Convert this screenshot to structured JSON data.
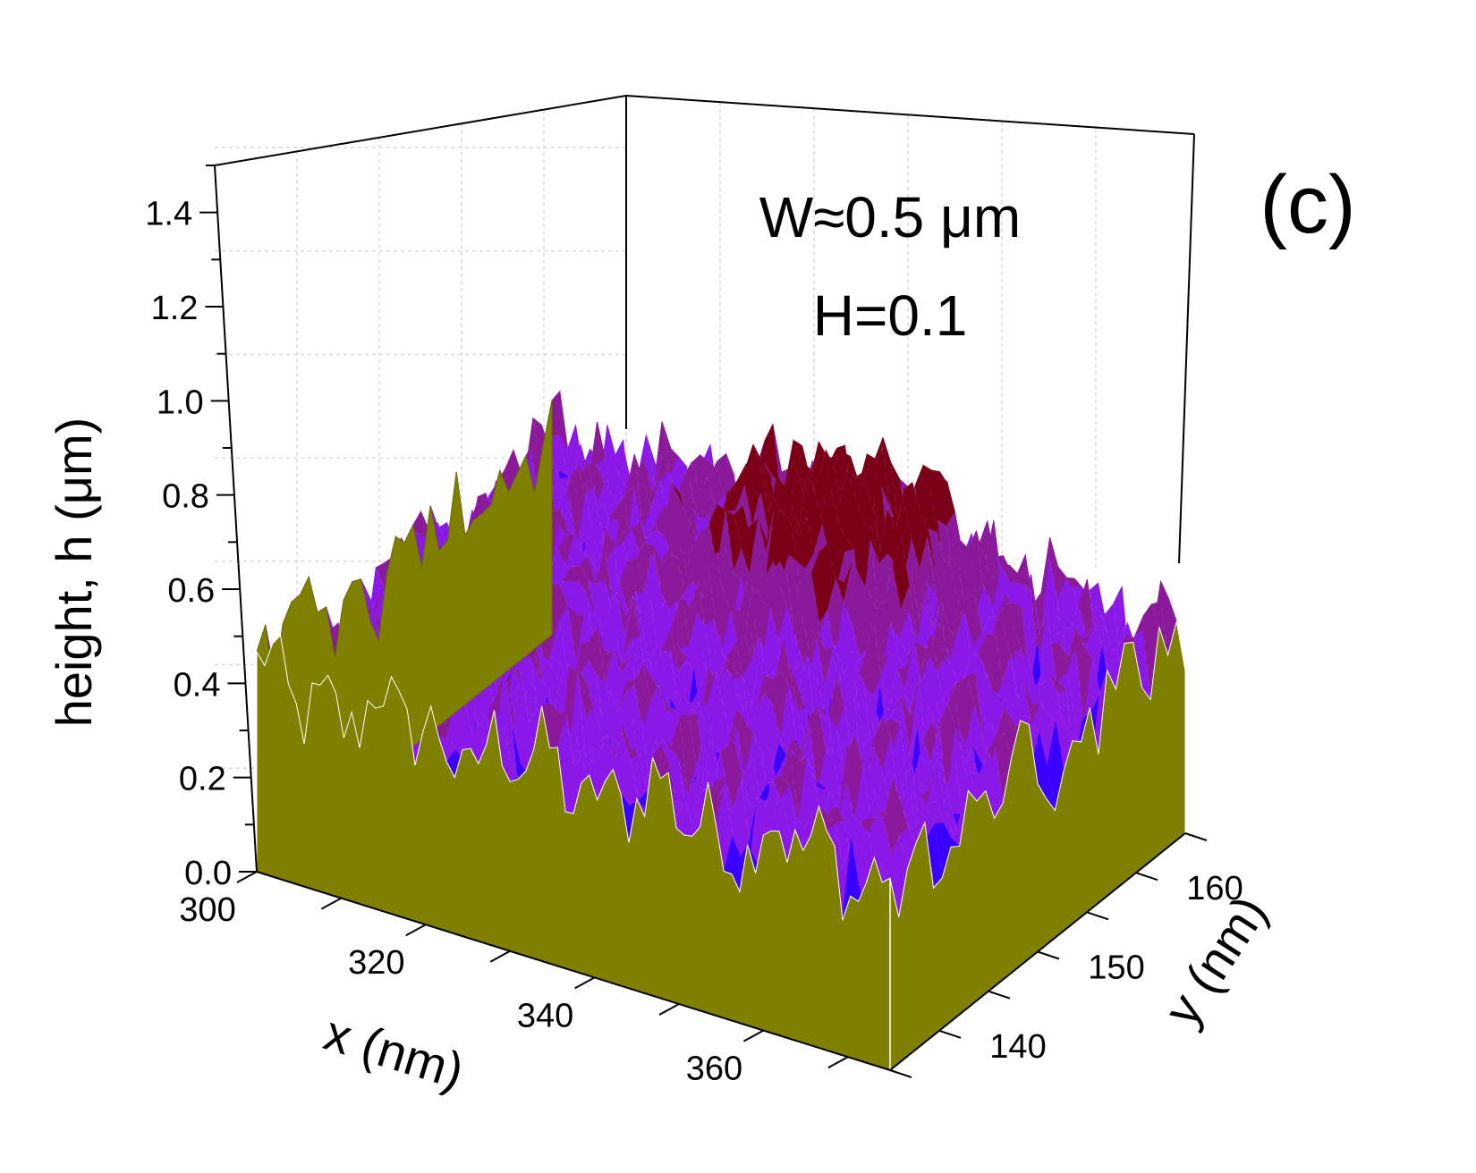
{
  "chart_data": {
    "type": "surface",
    "panel_label": "(c)",
    "annotations": [
      "W≈0.5 μm",
      "H=0.1"
    ],
    "zlabel": "height, h (μm)",
    "xlabel": "x (nm)",
    "ylabel": "y (nm)",
    "xlim": [
      300,
      375
    ],
    "ylim": [
      135,
      165
    ],
    "zlim": [
      0,
      1.5
    ],
    "z_ticks": [
      "0.0",
      "0.2",
      "0.4",
      "0.6",
      "0.8",
      "1.0",
      "1.2",
      "1.4"
    ],
    "x_ticks": [
      "300",
      "320",
      "340",
      "360"
    ],
    "y_ticks": [
      "140",
      "150",
      "160"
    ],
    "surface_summary": {
      "mean_height": 0.6,
      "max_height": 0.98,
      "min_height": 0.2,
      "peak_location": {
        "x": 340,
        "y": 160
      }
    },
    "grid": true,
    "colors": {
      "side_fill": "#808000",
      "surface_low": "#3a00ff",
      "surface_mid": "#8a18e6",
      "surface_high": "#7a0018",
      "mesh_lines": "#ffffff",
      "gridlines": "#cfcfcf"
    }
  }
}
